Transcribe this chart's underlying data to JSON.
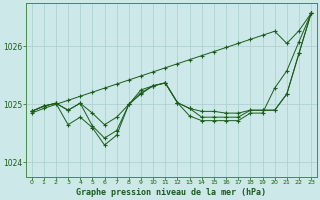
{
  "title": "Graphe pression niveau de la mer (hPa)",
  "bg_color": "#cce8e8",
  "grid_color": "#aacece",
  "line_color": "#1a5c1a",
  "xlim": [
    -0.5,
    23.5
  ],
  "ylim": [
    1023.75,
    1026.75
  ],
  "yticks": [
    1024,
    1025,
    1026
  ],
  "xticks": [
    0,
    1,
    2,
    3,
    4,
    5,
    6,
    7,
    8,
    9,
    10,
    11,
    12,
    13,
    14,
    15,
    16,
    17,
    18,
    19,
    20,
    21,
    22,
    23
  ],
  "upper_line": [
    1024.85,
    1024.93,
    1025.0,
    1025.07,
    1025.14,
    1025.21,
    1025.28,
    1025.35,
    1025.42,
    1025.49,
    1025.56,
    1025.63,
    1025.7,
    1025.77,
    1025.84,
    1025.91,
    1025.98,
    1026.05,
    1026.12,
    1026.19,
    1026.26,
    1026.05,
    1026.27,
    1026.57
  ],
  "mid_line1": [
    1024.88,
    1024.97,
    1025.02,
    1024.9,
    1025.02,
    1024.85,
    1024.65,
    1024.78,
    1025.0,
    1025.18,
    1025.32,
    1025.37,
    1025.03,
    1024.93,
    1024.88,
    1024.88,
    1024.85,
    1024.85,
    1024.9,
    1024.9,
    1024.9,
    1025.18,
    1025.88,
    1026.57
  ],
  "mid_line2": [
    1024.88,
    1024.97,
    1025.02,
    1024.9,
    1025.02,
    1024.63,
    1024.42,
    1024.55,
    1025.0,
    1025.2,
    1025.32,
    1025.37,
    1025.03,
    1024.93,
    1024.78,
    1024.78,
    1024.78,
    1024.78,
    1024.9,
    1024.9,
    1024.9,
    1025.18,
    1025.88,
    1026.57
  ],
  "lower_line": [
    1024.88,
    1024.97,
    1025.02,
    1024.65,
    1024.78,
    1024.6,
    1024.3,
    1024.47,
    1025.0,
    1025.25,
    1025.32,
    1025.37,
    1025.03,
    1024.8,
    1024.72,
    1024.72,
    1024.72,
    1024.72,
    1024.85,
    1024.85,
    1025.28,
    1025.58,
    1026.08,
    1026.57
  ]
}
